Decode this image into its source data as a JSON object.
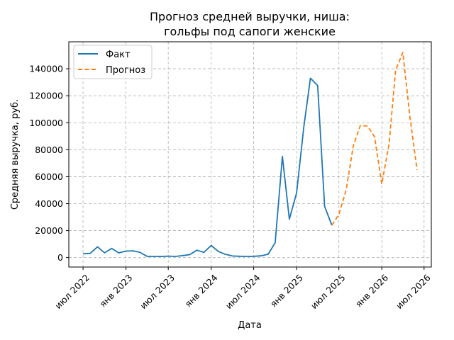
{
  "chart_data": {
    "type": "line",
    "title_lines": [
      "Прогноз средней выручки, ниша:",
      "гольфы под сапоги женские"
    ],
    "xlabel": "Дата",
    "ylabel": "Средняя выручка, руб.",
    "x_axis_type": "date",
    "xlim": [
      "2022-05-01",
      "2026-08-01"
    ],
    "ylim": [
      -7000,
      160000
    ],
    "x_ticks": [
      {
        "date": "2022-07-01",
        "label": "июл 2022"
      },
      {
        "date": "2023-01-01",
        "label": "янв 2023"
      },
      {
        "date": "2023-07-01",
        "label": "июл 2023"
      },
      {
        "date": "2024-01-01",
        "label": "янв 2024"
      },
      {
        "date": "2024-07-01",
        "label": "июл 2024"
      },
      {
        "date": "2025-01-01",
        "label": "янв 2025"
      },
      {
        "date": "2025-07-01",
        "label": "июл 2025"
      },
      {
        "date": "2026-01-01",
        "label": "янв 2026"
      },
      {
        "date": "2026-07-01",
        "label": "июл 2026"
      }
    ],
    "y_ticks": [
      0,
      20000,
      40000,
      60000,
      80000,
      100000,
      120000,
      140000
    ],
    "grid": true,
    "legend_position": "top-left",
    "series": [
      {
        "name": "Факт",
        "color": "#1f77b4",
        "style": "solid",
        "points": [
          [
            "2022-07-01",
            2800
          ],
          [
            "2022-08-01",
            3200
          ],
          [
            "2022-09-01",
            8000
          ],
          [
            "2022-10-01",
            3500
          ],
          [
            "2022-11-01",
            6800
          ],
          [
            "2022-12-01",
            3500
          ],
          [
            "2023-01-01",
            4800
          ],
          [
            "2023-02-01",
            5000
          ],
          [
            "2023-03-01",
            4000
          ],
          [
            "2023-04-01",
            1000
          ],
          [
            "2023-05-01",
            900
          ],
          [
            "2023-06-01",
            800
          ],
          [
            "2023-07-01",
            1100
          ],
          [
            "2023-08-01",
            900
          ],
          [
            "2023-09-01",
            1500
          ],
          [
            "2023-10-01",
            2200
          ],
          [
            "2023-11-01",
            5500
          ],
          [
            "2023-12-01",
            3800
          ],
          [
            "2024-01-01",
            9000
          ],
          [
            "2024-02-01",
            4500
          ],
          [
            "2024-03-01",
            2500
          ],
          [
            "2024-04-01",
            1200
          ],
          [
            "2024-05-01",
            1000
          ],
          [
            "2024-06-01",
            900
          ],
          [
            "2024-07-01",
            1000
          ],
          [
            "2024-08-01",
            1300
          ],
          [
            "2024-09-01",
            2500
          ],
          [
            "2024-10-01",
            11000
          ],
          [
            "2024-11-01",
            75000
          ],
          [
            "2024-12-01",
            28500
          ],
          [
            "2025-01-01",
            48000
          ],
          [
            "2025-02-01",
            97000
          ],
          [
            "2025-03-01",
            133000
          ],
          [
            "2025-04-01",
            127500
          ],
          [
            "2025-05-01",
            38000
          ],
          [
            "2025-06-01",
            24000
          ]
        ]
      },
      {
        "name": "Прогноз",
        "color": "#ff7f0e",
        "style": "dashed",
        "points": [
          [
            "2025-06-01",
            24000
          ],
          [
            "2025-07-01",
            32000
          ],
          [
            "2025-08-01",
            50000
          ],
          [
            "2025-09-01",
            83000
          ],
          [
            "2025-10-01",
            98000
          ],
          [
            "2025-11-01",
            97500
          ],
          [
            "2025-12-01",
            89500
          ],
          [
            "2026-01-01",
            54500
          ],
          [
            "2026-02-01",
            84000
          ],
          [
            "2026-03-01",
            139000
          ],
          [
            "2026-04-01",
            152000
          ],
          [
            "2026-05-01",
            105000
          ],
          [
            "2026-06-01",
            65000
          ]
        ]
      }
    ]
  }
}
